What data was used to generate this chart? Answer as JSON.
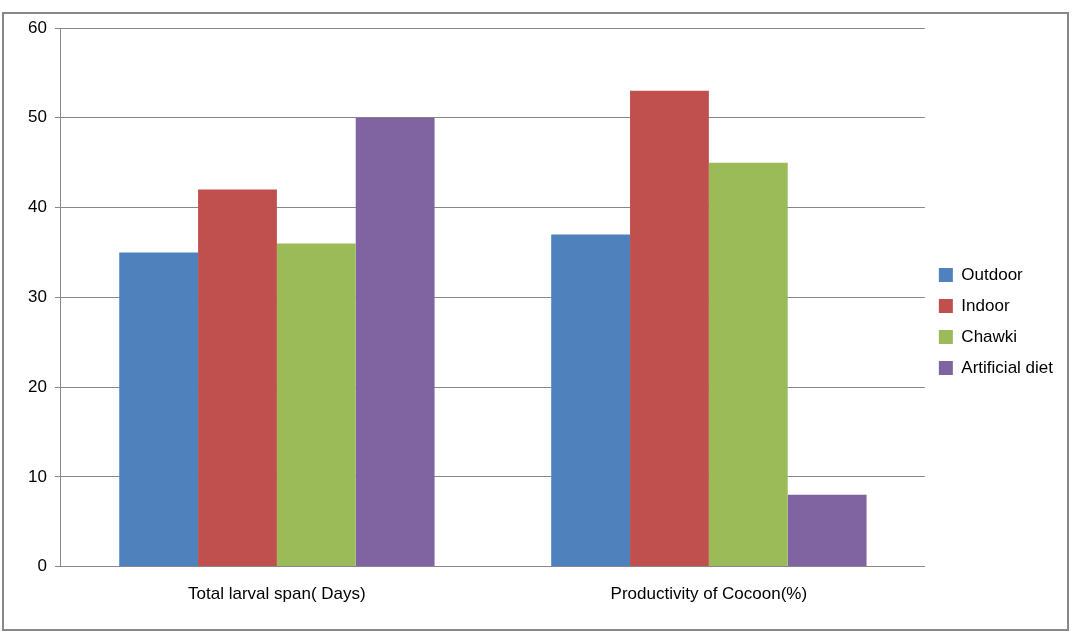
{
  "chart_data": {
    "type": "bar",
    "categories": [
      "Total larval span( Days)",
      "Productivity of Cocoon(%)"
    ],
    "series": [
      {
        "name": "Outdoor",
        "color": "#4f81bd",
        "values": [
          35,
          37
        ]
      },
      {
        "name": "Indoor",
        "color": "#c0504d",
        "values": [
          42,
          53
        ]
      },
      {
        "name": "Chawki",
        "color": "#9bbb59",
        "values": [
          36,
          45
        ]
      },
      {
        "name": "Artificial diet",
        "color": "#8064a2",
        "values": [
          50,
          8
        ]
      }
    ],
    "ylim": [
      0,
      60
    ],
    "yticks": [
      0,
      10,
      20,
      30,
      40,
      50,
      60
    ],
    "grid": "y",
    "legend": "right"
  }
}
